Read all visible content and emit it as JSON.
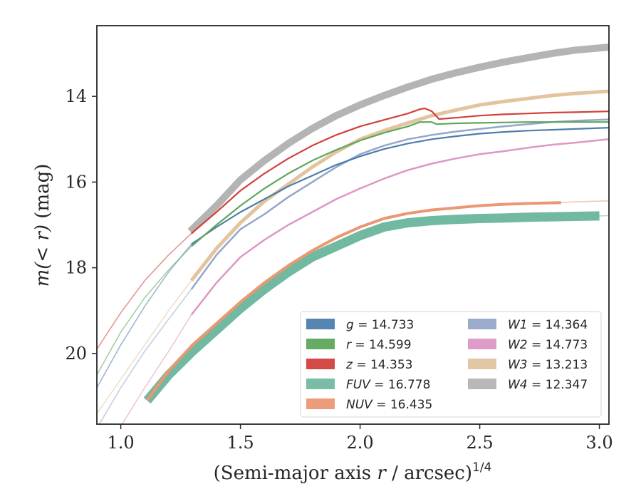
{
  "chart_data": {
    "type": "line",
    "xlabel": "(Semi-major axis",
    "xlabel_var": "r",
    "xlabel_unit": "/ arcsec)",
    "xlabel_power": "1/4",
    "ylabel_prefix": "m(< r)",
    "ylabel_unit": "(mag)",
    "xlim": [
      0.9,
      3.04
    ],
    "ylim": [
      21.65,
      12.35
    ],
    "y_inverted": true,
    "x_ticks": [
      1.0,
      1.5,
      2.0,
      2.5,
      3.0
    ],
    "x_tick_labels": [
      "1.0",
      "1.5",
      "2.0",
      "2.5",
      "3.0"
    ],
    "y_ticks": [
      14,
      16,
      18,
      20
    ],
    "y_tick_labels": [
      "14",
      "16",
      "18",
      "20"
    ],
    "grid": false,
    "legend_position": "lower-right",
    "series": [
      {
        "name": "g = 14.733",
        "label_var": "g",
        "label_value": "= 14.733",
        "color": "#4c7eac",
        "band_width": 2.2,
        "x": [
          1.295,
          1.4,
          1.5,
          1.6,
          1.7,
          1.8,
          1.9,
          2.0,
          2.1,
          2.2,
          2.3,
          2.4,
          2.5,
          2.6,
          2.7,
          2.8,
          2.9,
          3.04
        ],
        "y": [
          17.45,
          17.05,
          16.7,
          16.4,
          16.1,
          15.85,
          15.6,
          15.4,
          15.23,
          15.1,
          15.0,
          14.93,
          14.87,
          14.83,
          14.8,
          14.78,
          14.76,
          14.73
        ],
        "ext_x": [
          0.9,
          1.0,
          1.1,
          1.2,
          1.295
        ],
        "ext_y": [
          20.8,
          19.8,
          18.9,
          18.1,
          17.45
        ]
      },
      {
        "name": "r = 14.599",
        "label_var": "r",
        "label_value": "= 14.599",
        "color": "#5ea65a",
        "band_width": 2.2,
        "x": [
          1.295,
          1.4,
          1.5,
          1.6,
          1.7,
          1.8,
          1.9,
          2.0,
          2.1,
          2.2,
          2.25,
          2.3,
          2.32,
          2.4,
          2.5,
          2.6,
          2.7,
          2.8,
          2.9,
          3.04
        ],
        "y": [
          17.5,
          17.0,
          16.55,
          16.15,
          15.8,
          15.5,
          15.25,
          15.03,
          14.85,
          14.7,
          14.6,
          14.6,
          14.65,
          14.63,
          14.62,
          14.61,
          14.6,
          14.6,
          14.6,
          14.6
        ],
        "ext_x": [
          0.9,
          1.0,
          1.1,
          1.2,
          1.295
        ],
        "ext_y": [
          20.5,
          19.5,
          18.7,
          18.05,
          17.5
        ]
      },
      {
        "name": "z = 14.353",
        "label_var": "z",
        "label_value": "= 14.353",
        "color": "#d2403c",
        "band_width": 2.2,
        "x": [
          1.295,
          1.4,
          1.5,
          1.6,
          1.7,
          1.8,
          1.9,
          2.0,
          2.1,
          2.2,
          2.25,
          2.27,
          2.3,
          2.33,
          2.4,
          2.5,
          2.6,
          2.7,
          2.8,
          2.9,
          3.04
        ],
        "y": [
          17.2,
          16.7,
          16.2,
          15.8,
          15.45,
          15.15,
          14.9,
          14.7,
          14.55,
          14.4,
          14.3,
          14.28,
          14.35,
          14.53,
          14.5,
          14.45,
          14.42,
          14.4,
          14.38,
          14.37,
          14.35
        ],
        "ext_x": [
          0.9,
          1.0,
          1.1,
          1.2,
          1.295
        ],
        "ext_y": [
          19.9,
          19.05,
          18.3,
          17.7,
          17.2
        ]
      },
      {
        "name": "FUV = 16.778",
        "label_var": "FUV",
        "label_value": "= 16.778",
        "color": "#72b9a2",
        "band_width": 13,
        "x": [
          1.11,
          1.2,
          1.3,
          1.4,
          1.5,
          1.6,
          1.7,
          1.8,
          1.9,
          2.0,
          2.1,
          2.2,
          2.3,
          2.4,
          2.5,
          2.6,
          2.7,
          2.8,
          2.9,
          3.0
        ],
        "y": [
          21.1,
          20.5,
          19.95,
          19.45,
          18.95,
          18.5,
          18.1,
          17.75,
          17.5,
          17.25,
          17.05,
          16.95,
          16.9,
          16.87,
          16.85,
          16.84,
          16.82,
          16.81,
          16.8,
          16.79
        ],
        "ext_x": [
          3.0,
          3.04
        ],
        "ext_y": [
          16.79,
          16.78
        ]
      },
      {
        "name": "NUV = 16.435",
        "label_var": "NUV",
        "label_value": "= 16.435",
        "color": "#eb9774",
        "band_width": 4,
        "x": [
          1.11,
          1.2,
          1.3,
          1.4,
          1.5,
          1.6,
          1.7,
          1.8,
          1.9,
          2.0,
          2.1,
          2.2,
          2.3,
          2.4,
          2.5,
          2.6,
          2.7,
          2.84
        ],
        "y": [
          21.1,
          20.4,
          19.8,
          19.3,
          18.8,
          18.35,
          17.95,
          17.6,
          17.3,
          17.05,
          16.85,
          16.73,
          16.65,
          16.6,
          16.55,
          16.52,
          16.5,
          16.48
        ],
        "ext_x": [
          2.84,
          2.9,
          3.04
        ],
        "ext_y": [
          16.48,
          16.46,
          16.44
        ]
      },
      {
        "name": "W1 = 14.364",
        "label_var": "W1",
        "label_value": "= 14.364",
        "color": "#95a6c9",
        "band_width": 2.5,
        "x": [
          1.295,
          1.4,
          1.5,
          1.6,
          1.7,
          1.8,
          1.9,
          2.0,
          2.1,
          2.2,
          2.3,
          2.4,
          2.5,
          2.6,
          2.7,
          2.8,
          2.9,
          3.04
        ],
        "y": [
          18.5,
          17.7,
          17.1,
          16.75,
          16.35,
          16.0,
          15.65,
          15.35,
          15.15,
          15.0,
          14.9,
          14.82,
          14.76,
          14.7,
          14.65,
          14.6,
          14.57,
          14.54
        ],
        "ext_x": [
          0.9,
          1.0,
          1.1,
          1.2,
          1.295
        ],
        "ext_y": [
          21.75,
          20.8,
          19.95,
          19.2,
          18.5
        ]
      },
      {
        "name": "W2 = 14.773",
        "label_var": "W2",
        "label_value": "= 14.773",
        "color": "#dd97c4",
        "band_width": 2.5,
        "x": [
          1.295,
          1.4,
          1.5,
          1.6,
          1.7,
          1.8,
          1.9,
          2.0,
          2.1,
          2.2,
          2.3,
          2.4,
          2.5,
          2.6,
          2.7,
          2.8,
          2.9,
          3.04
        ],
        "y": [
          19.1,
          18.35,
          17.75,
          17.35,
          17.0,
          16.7,
          16.4,
          16.15,
          15.92,
          15.72,
          15.57,
          15.45,
          15.35,
          15.28,
          15.2,
          15.13,
          15.08,
          15.0
        ],
        "ext_x": [
          0.9,
          1.0,
          1.1,
          1.2,
          1.295
        ],
        "ext_y": [
          22.6,
          21.7,
          20.8,
          19.95,
          19.1
        ]
      },
      {
        "name": "W3 = 13.213",
        "label_var": "W3",
        "label_value": "= 13.213",
        "color": "#e2c49f",
        "band_width": 5,
        "x": [
          1.295,
          1.4,
          1.5,
          1.6,
          1.7,
          1.8,
          1.9,
          2.0,
          2.1,
          2.2,
          2.3,
          2.4,
          2.5,
          2.6,
          2.7,
          2.8,
          2.9,
          3.04
        ],
        "y": [
          18.3,
          17.55,
          16.95,
          16.45,
          16.05,
          15.65,
          15.3,
          15.0,
          14.8,
          14.62,
          14.45,
          14.32,
          14.2,
          14.12,
          14.05,
          13.98,
          13.93,
          13.88
        ],
        "ext_x": [
          0.9,
          1.0,
          1.1,
          1.2,
          1.295
        ],
        "ext_y": [
          21.4,
          20.6,
          19.8,
          19.0,
          18.3
        ]
      },
      {
        "name": "W4 = 12.347",
        "label_var": "W4",
        "label_value": "= 12.347",
        "color": "#b4b4b4",
        "band_width": 10,
        "x": [
          1.29,
          1.4,
          1.5,
          1.6,
          1.7,
          1.8,
          1.9,
          2.0,
          2.1,
          2.2,
          2.3,
          2.4,
          2.5,
          2.6,
          2.7,
          2.8,
          2.9,
          3.04
        ],
        "y": [
          17.15,
          16.55,
          15.95,
          15.5,
          15.1,
          14.75,
          14.45,
          14.2,
          13.98,
          13.78,
          13.6,
          13.45,
          13.32,
          13.2,
          13.1,
          13.0,
          12.92,
          12.85
        ]
      }
    ]
  }
}
